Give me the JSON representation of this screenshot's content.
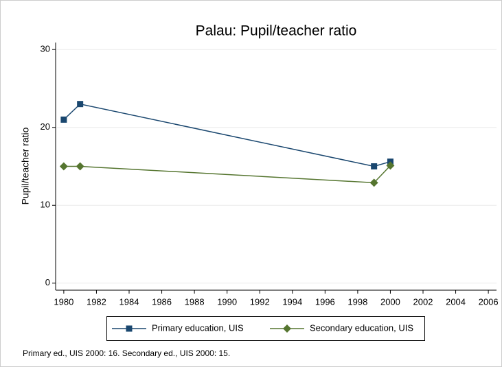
{
  "chart_data": {
    "type": "line",
    "title": "Palau: Pupil/teacher ratio",
    "ylabel": "Pupil/teacher ratio",
    "note": "Primary ed., UIS 2000: 16. Secondary ed., UIS 2000: 15.",
    "x": [
      1980,
      1981,
      1999,
      2000
    ],
    "series": [
      {
        "name": "Primary education, UIS",
        "color": "#1a476f",
        "marker": "square",
        "values": [
          21,
          23,
          15,
          15.6
        ]
      },
      {
        "name": "Secondary education, UIS",
        "color": "#55752f",
        "marker": "diamond",
        "values": [
          15,
          15,
          12.9,
          15.1
        ]
      }
    ],
    "xlim": [
      1979.5,
      2006.5
    ],
    "xticks": [
      1980,
      1982,
      1984,
      1986,
      1988,
      1990,
      1992,
      1994,
      1996,
      1998,
      2000,
      2002,
      2004,
      2006
    ],
    "ylim": [
      -0.9,
      30.9
    ],
    "yticks": [
      0,
      10,
      20,
      30
    ],
    "grid": true
  }
}
